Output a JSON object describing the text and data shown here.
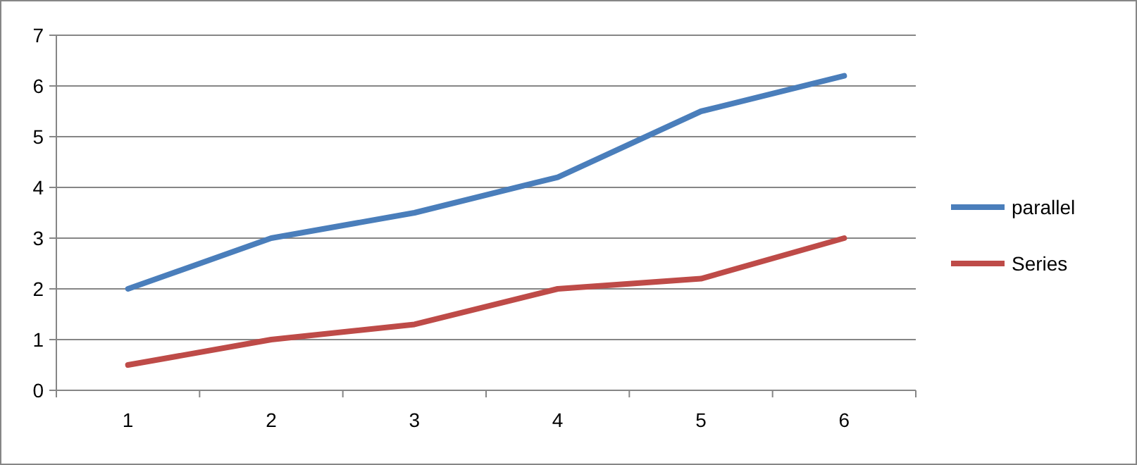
{
  "chart_data": {
    "type": "line",
    "categories": [
      "1",
      "2",
      "3",
      "4",
      "5",
      "6"
    ],
    "series": [
      {
        "name": "parallel",
        "color": "#4a7ebb",
        "values": [
          2,
          3,
          3.5,
          4.2,
          5.5,
          6.2
        ]
      },
      {
        "name": "Series",
        "color": "#be4b48",
        "values": [
          0.5,
          1,
          1.3,
          2,
          2.2,
          3
        ]
      }
    ],
    "ylim": [
      0,
      7
    ],
    "yticks": [
      0,
      1,
      2,
      3,
      4,
      5,
      6,
      7
    ],
    "grid": "y",
    "legend": "right",
    "marker": "none",
    "line_style": "solid"
  }
}
